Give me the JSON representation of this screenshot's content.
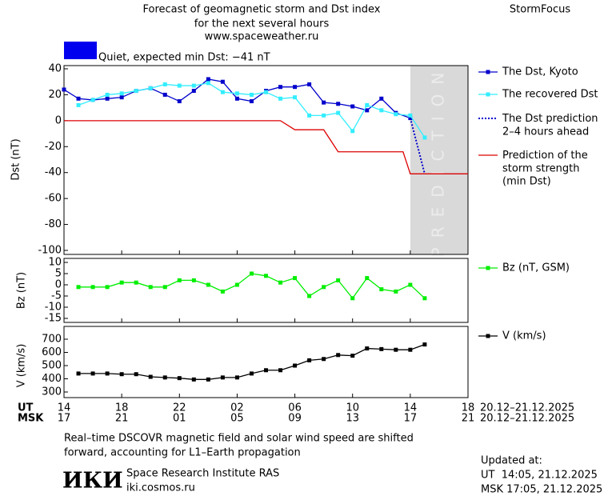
{
  "header": {
    "title": [
      "Forecast of geomagnetic storm and Dst index",
      "for the next several hours",
      "www.spaceweather.ru"
    ],
    "brand": "StormFocus",
    "status": "Quiet, expected min Dst: −41 nT",
    "status_color": "#0000ee"
  },
  "chart_data": [
    {
      "type": "line",
      "ylabel": "Dst (nT)",
      "xlim": [
        0,
        28
      ],
      "ylim": [
        -100,
        40
      ],
      "yticks": [
        40,
        20,
        0,
        -20,
        -40,
        -60,
        -80,
        -100
      ],
      "prediction_region": [
        24,
        28
      ],
      "prediction_label": "PREDICTION",
      "x": [
        0,
        1,
        2,
        3,
        4,
        5,
        6,
        7,
        8,
        9,
        10,
        11,
        12,
        13,
        14,
        15,
        16,
        17,
        18,
        19,
        20,
        21,
        22,
        23,
        24,
        25
      ],
      "series": [
        {
          "name": "The Dst, Kyoto",
          "color": "#0000cc",
          "marker": "square",
          "values": [
            24,
            17,
            16,
            17,
            18,
            23,
            25,
            20,
            15,
            23,
            32,
            30,
            17,
            15,
            23,
            26,
            26,
            28,
            14,
            13,
            11,
            8,
            17,
            6,
            2,
            null
          ]
        },
        {
          "name": "The recovered Dst",
          "color": "#33eeff",
          "marker": "square",
          "values": [
            null,
            12,
            16,
            20,
            21,
            23,
            25,
            28,
            27,
            27,
            29,
            22,
            21,
            20,
            22,
            17,
            18,
            4,
            4,
            6,
            -8,
            12,
            8,
            5,
            4,
            -13
          ]
        },
        {
          "name": "The Dst prediction\n2–4 hours ahead",
          "color": "#0000cc",
          "style": "dotted",
          "x": [
            24,
            25
          ],
          "values": [
            2,
            -41
          ]
        },
        {
          "name": "Prediction of the\nstorm strength\n(min Dst)",
          "color": "#dd0000",
          "x": [
            0,
            15,
            16,
            18,
            19,
            23.5,
            24,
            28
          ],
          "values": [
            0,
            0,
            -7,
            -7,
            -24,
            -24,
            -41,
            -41
          ]
        }
      ]
    },
    {
      "type": "line",
      "ylabel": "Bz (nT)",
      "xlim": [
        0,
        28
      ],
      "ylim": [
        -15,
        10
      ],
      "yticks": [
        10,
        5,
        0,
        -5,
        -10,
        -15
      ],
      "x": [
        1,
        2,
        3,
        4,
        5,
        6,
        7,
        8,
        9,
        10,
        11,
        12,
        13,
        14,
        15,
        16,
        17,
        18,
        19,
        20,
        21,
        22,
        23,
        24,
        25
      ],
      "series": [
        {
          "name": "Bz (nT, GSM)",
          "color": "#00ee00",
          "marker": "square",
          "values": [
            -1,
            -1,
            -1,
            1,
            1,
            -1,
            -1,
            2,
            2,
            0,
            -3,
            0,
            5,
            4,
            1,
            3,
            -5,
            -1,
            2,
            -6,
            3,
            -2,
            -3,
            0,
            -6
          ]
        }
      ]
    },
    {
      "type": "line",
      "ylabel": "V (km/s)",
      "xlim": [
        0,
        28
      ],
      "ylim": [
        300,
        700
      ],
      "yticks": [
        700,
        600,
        500,
        400,
        300
      ],
      "x": [
        1,
        2,
        3,
        4,
        5,
        6,
        7,
        8,
        9,
        10,
        11,
        12,
        13,
        14,
        15,
        16,
        17,
        18,
        19,
        20,
        21,
        22,
        23,
        24,
        25
      ],
      "xticks": [
        {
          "value": 0,
          "label": "14"
        },
        {
          "value": 4,
          "label": "18"
        },
        {
          "value": 8,
          "label": "22"
        },
        {
          "value": 12,
          "label": "02"
        },
        {
          "value": 16,
          "label": "06"
        },
        {
          "value": 20,
          "label": "10"
        },
        {
          "value": 24,
          "label": "14"
        },
        {
          "value": 28,
          "label": "18"
        }
      ],
      "msk_labels": [
        "17",
        "21",
        "01",
        "05",
        "09",
        "13",
        "17",
        "21"
      ],
      "xlabel": "UT",
      "x2label": "MSK",
      "ut_range": "20.12–21.12.2025",
      "msk_range": "20.12–21.12.2025",
      "series": [
        {
          "name": "V (km/s)",
          "color": "#000000",
          "marker": "square",
          "values": [
            440,
            440,
            440,
            435,
            435,
            415,
            410,
            405,
            395,
            395,
            410,
            410,
            440,
            465,
            465,
            500,
            540,
            550,
            580,
            575,
            630,
            625,
            620,
            620,
            660
          ]
        }
      ]
    }
  ],
  "footer": {
    "note": [
      "Real–time DSCOVR magnetic field and solar wind speed are shifted",
      "forward, accounting for L1–Earth propagation"
    ],
    "logo": "ИКИ",
    "institute": "Space Research Institute RAS",
    "site": "iki.cosmos.ru",
    "updated_title": "Updated at:",
    "updated_ut": "UT  14:05, 21.12.2025",
    "updated_msk": "MSK 17:05, 21.12.2025"
  }
}
